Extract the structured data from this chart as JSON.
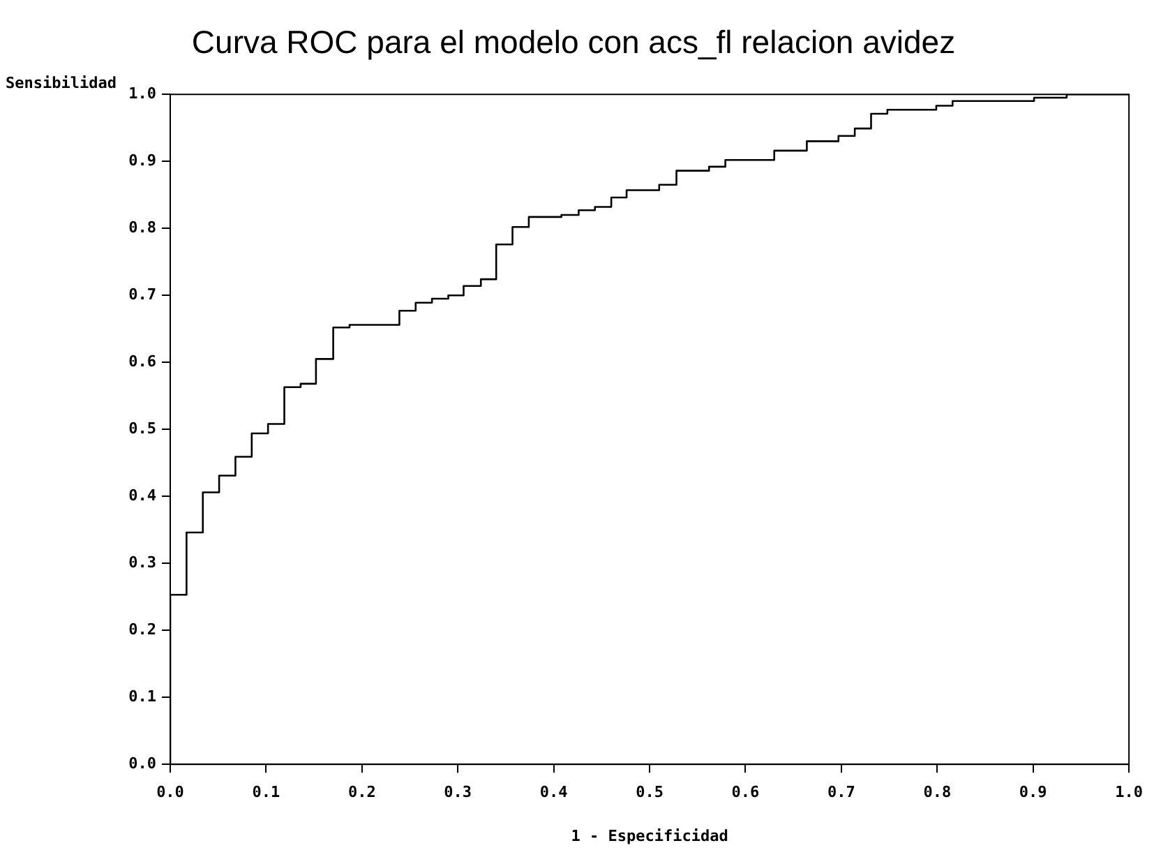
{
  "chart_data": {
    "type": "step",
    "title": "Curva ROC para el modelo con acs_fl relacion avidez",
    "xlabel": "1 - Especificidad",
    "ylabel": "Sensibilidad",
    "x": [
      0,
      0,
      0.017,
      0.034,
      0.051,
      0.068,
      0.085,
      0.102,
      0.119,
      0.136,
      0.152,
      0.17,
      0.187,
      0.239,
      0.256,
      0.273,
      0.29,
      0.306,
      0.324,
      0.34,
      0.357,
      0.374,
      0.408,
      0.426,
      0.443,
      0.46,
      0.476,
      0.51,
      0.528,
      0.562,
      0.579,
      0.63,
      0.664,
      0.697,
      0.714,
      0.731,
      0.748,
      0.799,
      0.816,
      0.901,
      0.935,
      1.0
    ],
    "series": [
      {
        "color": "#000000",
        "values": [
          0,
          0.253,
          0.346,
          0.406,
          0.431,
          0.459,
          0.494,
          0.508,
          0.563,
          0.568,
          0.605,
          0.652,
          0.656,
          0.677,
          0.689,
          0.695,
          0.7,
          0.714,
          0.724,
          0.776,
          0.802,
          0.817,
          0.82,
          0.827,
          0.832,
          0.846,
          0.857,
          0.865,
          0.886,
          0.892,
          0.902,
          0.916,
          0.93,
          0.938,
          0.949,
          0.971,
          0.977,
          0.983,
          0.99,
          0.995,
          1.0,
          1.0
        ]
      }
    ],
    "xlim": [
      0,
      1
    ],
    "ylim": [
      0,
      1
    ],
    "xticks": [
      {
        "value": 0,
        "label": "0.0"
      },
      0.1,
      0.2,
      0.3,
      0.4,
      0.5,
      0.6,
      0.7,
      0.8,
      0.9,
      {
        "value": 1,
        "label": "1.0"
      }
    ],
    "yticks": [
      {
        "value": 0,
        "label": "0.0"
      },
      0.1,
      0.2,
      0.3,
      0.4,
      0.5,
      0.6,
      0.7,
      0.8,
      0.9,
      {
        "value": 1,
        "label": "1.0"
      }
    ],
    "grid": false,
    "legend": false,
    "marker": "none",
    "line_style": "solid"
  }
}
